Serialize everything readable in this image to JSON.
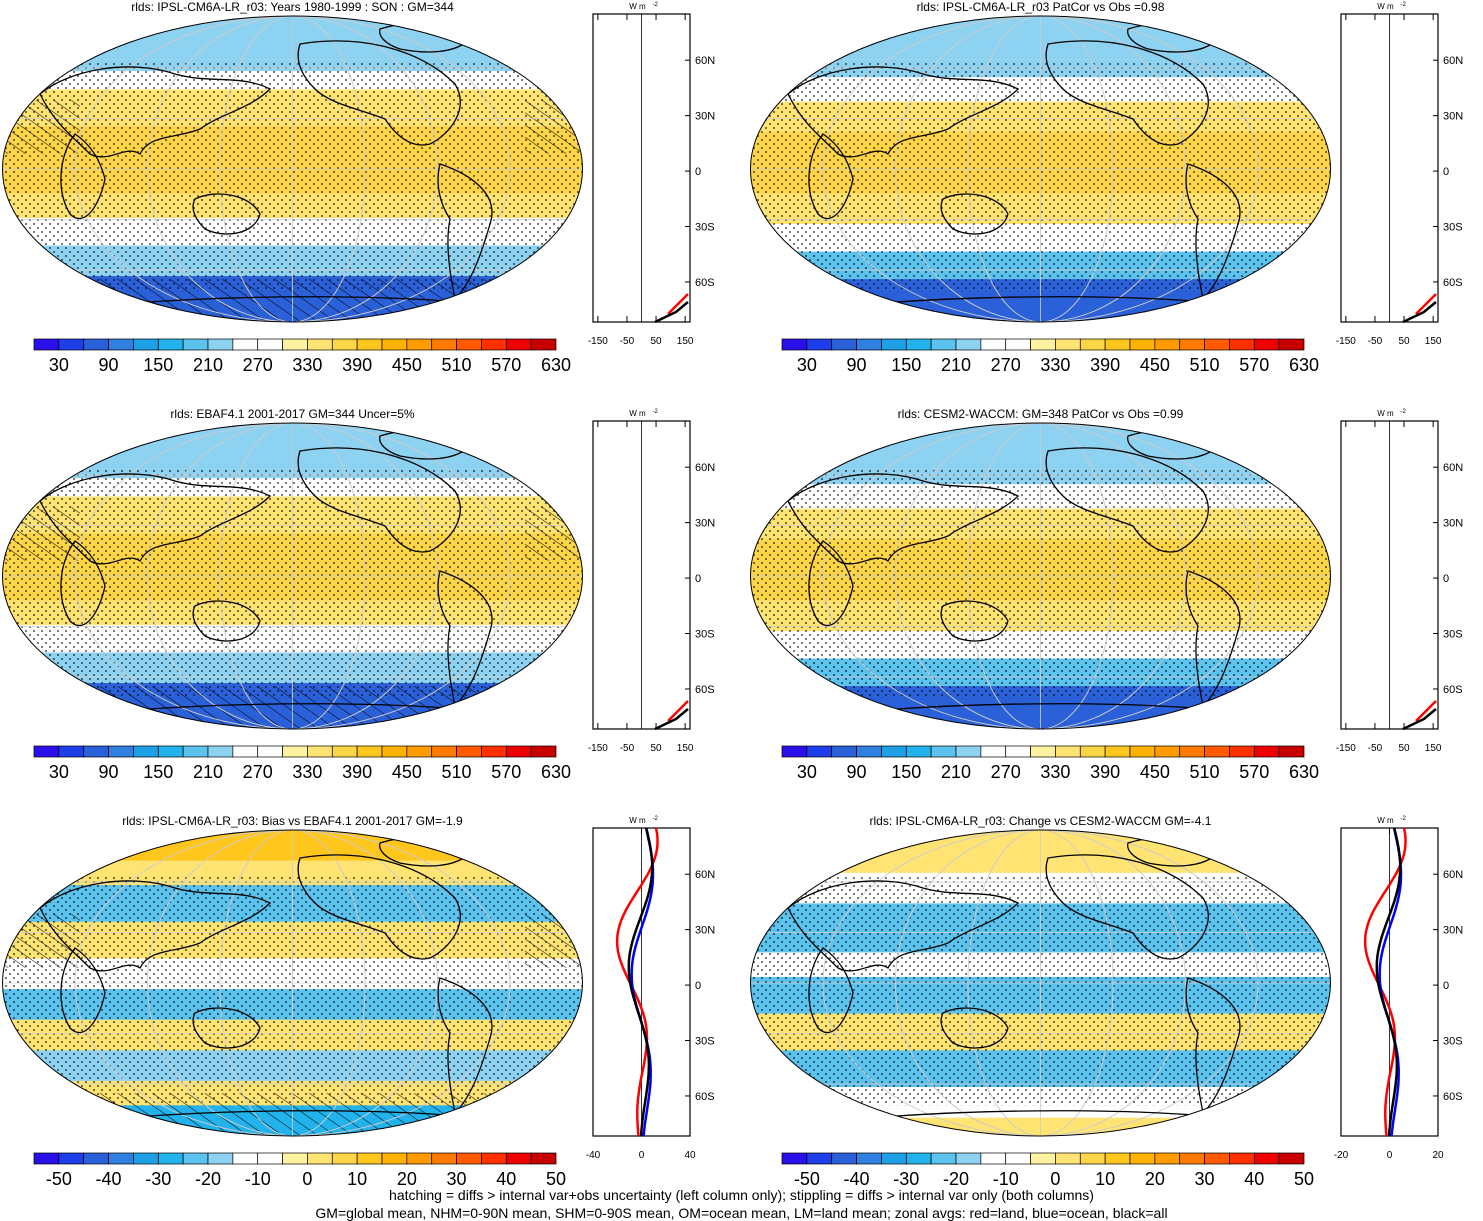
{
  "panels": [
    {
      "title": "rlds: IPSL-CM6A-LR_r03: Years 1980-1999 : SON : GM=344",
      "kind": "abs",
      "hatch": true,
      "cbar_labels": [
        "30",
        "90",
        "150",
        "210",
        "270",
        "330",
        "390",
        "450",
        "510",
        "570",
        "630"
      ],
      "zonal_ticks": [
        "-150",
        "-50",
        "50",
        "150"
      ]
    },
    {
      "title": "rlds: IPSL-CM6A-LR_r03 PatCor vs Obs =0.98",
      "kind": "abs",
      "hatch": false,
      "cbar_labels": [
        "30",
        "90",
        "150",
        "210",
        "270",
        "330",
        "390",
        "450",
        "510",
        "570",
        "630"
      ],
      "zonal_ticks": [
        "-150",
        "-50",
        "50",
        "150"
      ]
    },
    {
      "title": "rlds: EBAF4.1 2001-2017 GM=344 Uncer=5%",
      "kind": "abs",
      "hatch": true,
      "cbar_labels": [
        "30",
        "90",
        "150",
        "210",
        "270",
        "330",
        "390",
        "450",
        "510",
        "570",
        "630"
      ],
      "zonal_ticks": [
        "-150",
        "-50",
        "50",
        "150"
      ]
    },
    {
      "title": "rlds: CESM2-WACCM: GM=348 PatCor vs Obs =0.99",
      "kind": "abs",
      "hatch": false,
      "cbar_labels": [
        "30",
        "90",
        "150",
        "210",
        "270",
        "330",
        "390",
        "450",
        "510",
        "570",
        "630"
      ],
      "zonal_ticks": [
        "-150",
        "-50",
        "50",
        "150"
      ]
    },
    {
      "title": "rlds: IPSL-CM6A-LR_r03: Bias vs EBAF4.1 2001-2017  GM=-1.9",
      "kind": "diff",
      "hatch": true,
      "cbar_labels": [
        "-50",
        "-40",
        "-30",
        "-20",
        "-10",
        "0",
        "10",
        "20",
        "30",
        "40",
        "50"
      ],
      "zonal_ticks": [
        "-40",
        "0",
        "40"
      ]
    },
    {
      "title": "rlds: IPSL-CM6A-LR_r03: Change vs CESM2-WACCM GM=-4.1",
      "kind": "diff",
      "hatch": false,
      "cbar_labels": [
        "-50",
        "-40",
        "-30",
        "-20",
        "-10",
        "0",
        "10",
        "20",
        "30",
        "40",
        "50"
      ],
      "zonal_ticks": [
        "-20",
        "0",
        "20"
      ]
    }
  ],
  "lat_labels": [
    "60N",
    "30N",
    "0",
    "30S",
    "60S"
  ],
  "units_label": "W m",
  "units_exp": "-2",
  "colors": {
    "abs": [
      "#2a10e8",
      "#1d3ee8",
      "#2a60d8",
      "#2f80e0",
      "#1ea0e6",
      "#22b2ec",
      "#5cc2ee",
      "#8ed2f2",
      "#ffffff",
      "#ffffff",
      "#fff3a2",
      "#ffe474",
      "#ffd548",
      "#ffc61e",
      "#ffb300",
      "#ff9a00",
      "#ff7a00",
      "#ff5a00",
      "#ff2f00",
      "#ee0000",
      "#c80000"
    ],
    "diff": [
      "#2a10e8",
      "#1d3ee8",
      "#2a60d8",
      "#2f80e0",
      "#1ea0e6",
      "#22b2ec",
      "#5cc2ee",
      "#8ed2f2",
      "#ffffff",
      "#ffffff",
      "#fff3a2",
      "#ffe474",
      "#ffd548",
      "#ffc61e",
      "#ffb300",
      "#ff9a00",
      "#ff7a00",
      "#ff5a00",
      "#ff2f00",
      "#ee0000",
      "#c80000"
    ],
    "land_line": "#ff0000",
    "ocean_line": "#0000ff",
    "all_line": "#000000"
  },
  "footer": [
    "hatching = diffs > internal var+obs uncertainty (left column only); stippling = diffs > internal var only (both columns)",
    "GM=global mean, NHM=0-90N mean, SHM=0-90S mean, OM=ocean mean, LM=land mean; zonal avgs: red=land, blue=ocean, black=all"
  ]
}
